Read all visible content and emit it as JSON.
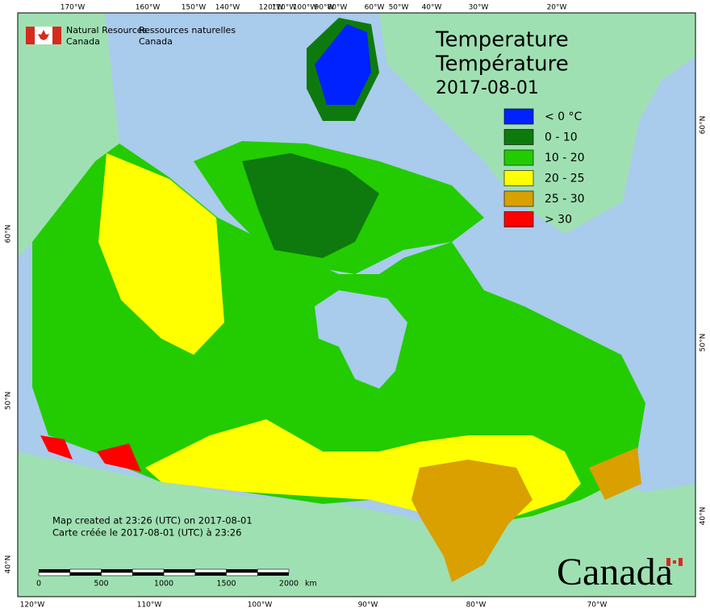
{
  "header": {
    "agency_en": [
      "Natural Resources",
      "Canada"
    ],
    "agency_fr": [
      "Ressources naturelles",
      "Canada"
    ]
  },
  "title": [
    "Temperature",
    "Température",
    "2017-08-01"
  ],
  "legend": [
    {
      "label": "< 0 °C",
      "color": "#0022ff"
    },
    {
      "label": "0 - 10",
      "color": "#0e7a0e"
    },
    {
      "label": "10 - 20",
      "color": "#22cc00"
    },
    {
      "label": "20 - 25",
      "color": "#ffff00"
    },
    {
      "label": "25 - 30",
      "color": "#d9a000"
    },
    {
      "label": "> 30",
      "color": "#ff0000"
    }
  ],
  "graticule": {
    "top": [
      "170°W",
      "160°W",
      "150°W",
      "140°W",
      "120°W",
      "110°W",
      "100°W",
      "90°W",
      "80°W",
      "60°W",
      "50°W",
      "40°W",
      "30°W",
      "20°W"
    ],
    "bottom": [
      "120°W",
      "110°W",
      "100°W",
      "90°W",
      "80°W",
      "70°W"
    ],
    "left": [
      "60°N",
      "50°N",
      "40°N"
    ],
    "right": [
      "60°N",
      "50°N",
      "40°N"
    ]
  },
  "scale_bar": {
    "labels": [
      "0",
      "500",
      "1000",
      "1500",
      "2000"
    ],
    "unit": "km"
  },
  "footer": [
    "Map created at 23:26 (UTC) on 2017-08-01",
    "Carte créée le 2017-08-01 (UTC) à 23:26"
  ],
  "wordmark": "Canada"
}
